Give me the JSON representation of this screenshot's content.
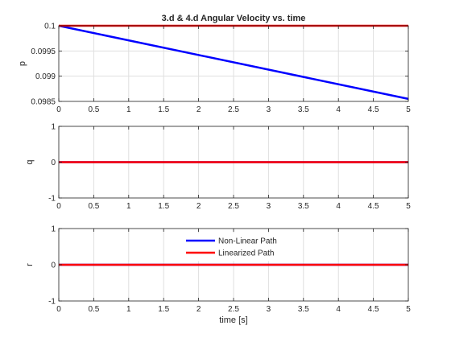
{
  "chart_data": [
    {
      "type": "line",
      "title": "3.d & 4.d Angular Velocity vs. time",
      "xlabel": "",
      "ylabel": "p",
      "xlim": [
        0,
        5
      ],
      "ylim": [
        0.0985,
        0.1
      ],
      "xticks": [
        "0",
        "0.5",
        "1",
        "1.5",
        "2",
        "2.5",
        "3",
        "3.5",
        "4",
        "4.5",
        "5"
      ],
      "yticks": [
        "0.0985",
        "0.099",
        "0.0995",
        "0.1"
      ],
      "grid": true,
      "series": [
        {
          "color": "#0000ff",
          "x": [
            0,
            5
          ],
          "y": [
            0.1,
            0.09855
          ]
        },
        {
          "color": "#ff0000",
          "x": [
            0,
            5
          ],
          "y": [
            0.1,
            0.1
          ]
        }
      ]
    },
    {
      "type": "line",
      "title": "",
      "xlabel": "",
      "ylabel": "q",
      "xlim": [
        0,
        5
      ],
      "ylim": [
        -1,
        1
      ],
      "xticks": [
        "0",
        "0.5",
        "1",
        "1.5",
        "2",
        "2.5",
        "3",
        "3.5",
        "4",
        "4.5",
        "5"
      ],
      "yticks": [
        "-1",
        "0",
        "1"
      ],
      "grid": true,
      "series": [
        {
          "color": "#0000ff",
          "x": [
            0,
            5
          ],
          "y": [
            0,
            0
          ]
        },
        {
          "color": "#ff0000",
          "x": [
            0,
            5
          ],
          "y": [
            0,
            0
          ]
        }
      ]
    },
    {
      "type": "line",
      "title": "",
      "xlabel": "time [s]",
      "ylabel": "r",
      "xlim": [
        0,
        5
      ],
      "ylim": [
        -1,
        1
      ],
      "xticks": [
        "0",
        "0.5",
        "1",
        "1.5",
        "2",
        "2.5",
        "3",
        "3.5",
        "4",
        "4.5",
        "5"
      ],
      "yticks": [
        "-1",
        "0",
        "1"
      ],
      "grid": true,
      "legend": {
        "placement": "top-center",
        "entries": [
          {
            "label": "Non-Linear Path",
            "color": "#0000ff"
          },
          {
            "label": "Linearized Path",
            "color": "#ff0000"
          }
        ]
      },
      "series": [
        {
          "color": "#0000ff",
          "x": [
            0,
            5
          ],
          "y": [
            0,
            0
          ]
        },
        {
          "color": "#ff0000",
          "x": [
            0,
            5
          ],
          "y": [
            0,
            0
          ]
        }
      ]
    }
  ]
}
